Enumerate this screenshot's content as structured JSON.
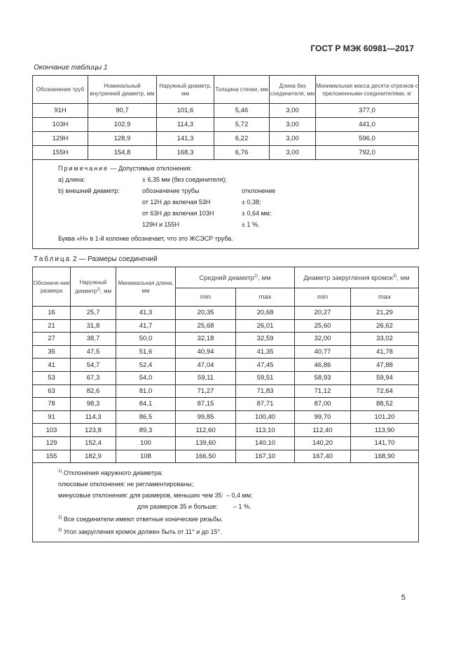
{
  "header": "ГОСТ Р МЭК 60981—2017",
  "table1": {
    "caption": "Окончание таблицы 1",
    "headers": [
      "Обозначение труб",
      "Номинальный внутренний диаметр, мм",
      "Наружный диаметр, мм",
      "Толщина стенки, мм",
      "Длина без соединителя, мм",
      "Минимальная масса десяти отрезков с приложенными соединителями, кг"
    ],
    "rows": [
      [
        "91Н",
        "90,7",
        "101,6",
        "5,46",
        "3,00",
        "377,0"
      ],
      [
        "103Н",
        "102,9",
        "114,3",
        "5,72",
        "3,00",
        "441,0"
      ],
      [
        "129Н",
        "128,9",
        "141,3",
        "6,22",
        "3,00",
        "596,0"
      ],
      [
        "155Н",
        "154,8",
        "168,3",
        "6,76",
        "3,00",
        "792,0"
      ]
    ],
    "note": {
      "label": "Примечание",
      "title": " — Допустимые отклонения:",
      "a_label": "а) длина:",
      "a_value": "± 6,35 мм (без соединителя);",
      "b_label": "b) внешний диаметр:",
      "b_col1": "обозначение трубы",
      "b_col2": "отклонение",
      "b_rows": [
        [
          "от 12Н до включая 53Н",
          "± 0,38;"
        ],
        [
          "от 63Н до включая 103Н",
          "± 0,64 мм;"
        ],
        [
          "129Н и 155Н",
          "± 1 %."
        ]
      ],
      "footer": "Буква «Н» в 1-й колонке обозначает, что это ЖСЭСР труба."
    }
  },
  "table2": {
    "caption_label": "Таблица",
    "caption": " 2 — Размеры соединений",
    "headers": {
      "size": "Обозначе-ние размера",
      "outer": "Наружный диаметр",
      "outer_sup": "1)",
      "outer_unit": ", мм",
      "minlen": "Минимальная длина, мм",
      "mean": "Средний диаметр",
      "mean_sup": "2)",
      "mean_unit": ", мм",
      "round": "Диаметр закругления кромок",
      "round_sup": "3)",
      "round_unit": ", мм",
      "min": "min",
      "max": "max"
    },
    "rows": [
      [
        "16",
        "25,7",
        "41,3",
        "20,35",
        "20,68",
        "20,27",
        "21,29"
      ],
      [
        "21",
        "31,8",
        "41,7",
        "25,68",
        "26,01",
        "25,60",
        "26,62"
      ],
      [
        "27",
        "38,7",
        "50,0",
        "32,18",
        "32,59",
        "32,00",
        "33,02"
      ],
      [
        "35",
        "47,5",
        "51,6",
        "40,94",
        "41,35",
        "40,77",
        "41,78"
      ],
      [
        "41",
        "54,7",
        "52,4",
        "47,04",
        "47,45",
        "46,86",
        "47,88"
      ],
      [
        "53",
        "67,3",
        "54,0",
        "59,11",
        "59,51",
        "58,93",
        "59,94"
      ],
      [
        "63",
        "82,6",
        "81,0",
        "71,27",
        "71,83",
        "71,12",
        "72,64"
      ],
      [
        "78",
        "98,3",
        "84,1",
        "87,15",
        "87,71",
        "87,00",
        "88,52"
      ],
      [
        "91",
        "114,3",
        "86,5",
        "99,85",
        "100,40",
        "99,70",
        "101,20"
      ],
      [
        "103",
        "123,8",
        "89,3",
        "112,60",
        "113,10",
        "112,40",
        "113,90"
      ],
      [
        "129",
        "152,4",
        "100",
        "139,60",
        "140,10",
        "140,20",
        "141,70"
      ],
      [
        "155",
        "182,9",
        "108",
        "166,50",
        "167,10",
        "167,40",
        "168,90"
      ]
    ],
    "notes": {
      "n1_sup": "1)",
      "n1": " Отклонения наружного диаметра:",
      "n1_plus": "плюсовые отклонения: не регламентированы;",
      "n1_minus": "минусовые отклонения: для размеров, меньших чем 35:",
      "n1_minus_v": "– 0,4 мм;",
      "n1_minus2": "для размеров 35 и больше:",
      "n1_minus2_v": "– 1 %.",
      "n2_sup": "2)",
      "n2": " Все соединители имеют ответные конические резьбы.",
      "n3_sup": "3)",
      "n3": " Угол закругления кромок должен быть от 11° и до 15°."
    }
  },
  "page_number": "5"
}
